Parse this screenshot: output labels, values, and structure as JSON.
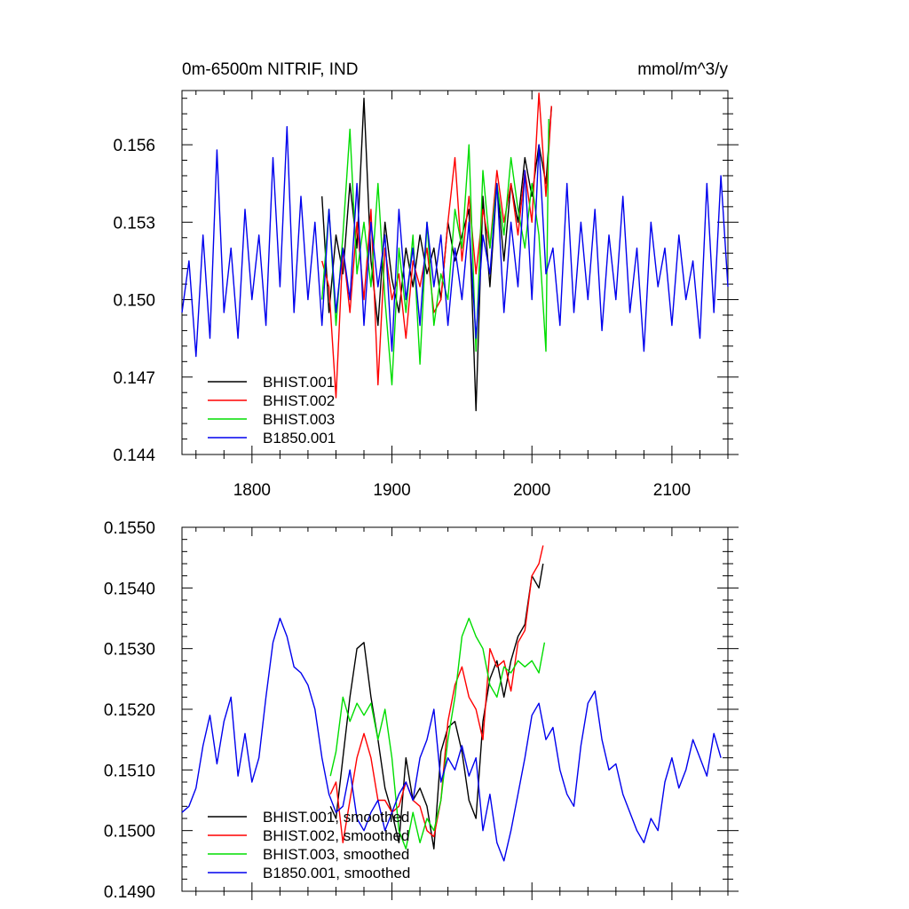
{
  "chart_data": [
    {
      "type": "line",
      "title": "0m-6500m NITRIF, IND",
      "units": "mmol/m^3/y",
      "xlim": [
        1750,
        2140
      ],
      "ylim": [
        0.144,
        0.1581
      ],
      "xticks": [
        1800,
        1900,
        2000,
        2100
      ],
      "xtick_labels": [
        "1800",
        "1900",
        "2000",
        "2100"
      ],
      "yticks": [
        0.144,
        0.147,
        0.15,
        0.153,
        0.156
      ],
      "ytick_labels": [
        "0.144",
        "0.147",
        "0.150",
        "0.153",
        "0.156"
      ],
      "legend_position": "lower-left",
      "series": [
        {
          "name": "BHIST.001",
          "color": "#000000",
          "x": [
            1850,
            1855,
            1860,
            1865,
            1870,
            1875,
            1880,
            1885,
            1890,
            1895,
            1900,
            1905,
            1910,
            1915,
            1920,
            1925,
            1930,
            1935,
            1940,
            1945,
            1950,
            1955,
            1960,
            1965,
            1970,
            1975,
            1980,
            1985,
            1990,
            1995,
            2000,
            2005,
            2010,
            2014
          ],
          "values": [
            0.154,
            0.1495,
            0.1525,
            0.151,
            0.1545,
            0.152,
            0.1578,
            0.1515,
            0.149,
            0.153,
            0.1508,
            0.1495,
            0.152,
            0.1505,
            0.1525,
            0.151,
            0.152,
            0.15,
            0.153,
            0.1515,
            0.1525,
            0.1535,
            0.1457,
            0.154,
            0.1505,
            0.1545,
            0.1515,
            0.1545,
            0.153,
            0.1555,
            0.154,
            0.156,
            0.1545,
            0.1575
          ]
        },
        {
          "name": "BHIST.002",
          "color": "#ff0000",
          "x": [
            1850,
            1855,
            1860,
            1865,
            1870,
            1875,
            1880,
            1885,
            1890,
            1895,
            1900,
            1905,
            1910,
            1915,
            1920,
            1925,
            1930,
            1935,
            1940,
            1945,
            1950,
            1955,
            1960,
            1965,
            1970,
            1975,
            1980,
            1985,
            1990,
            1995,
            2000,
            2005,
            2010,
            2014
          ],
          "values": [
            0.1515,
            0.1505,
            0.1462,
            0.152,
            0.1495,
            0.153,
            0.15,
            0.1535,
            0.1467,
            0.152,
            0.15,
            0.151,
            0.1485,
            0.1515,
            0.1505,
            0.152,
            0.1495,
            0.15,
            0.153,
            0.1555,
            0.1515,
            0.154,
            0.151,
            0.1535,
            0.152,
            0.155,
            0.153,
            0.1545,
            0.1525,
            0.155,
            0.153,
            0.158,
            0.154,
            0.1575
          ]
        },
        {
          "name": "BHIST.003",
          "color": "#00dd00",
          "x": [
            1850,
            1855,
            1860,
            1865,
            1870,
            1875,
            1880,
            1885,
            1890,
            1895,
            1900,
            1905,
            1910,
            1915,
            1920,
            1925,
            1930,
            1935,
            1940,
            1945,
            1950,
            1955,
            1960,
            1965,
            1970,
            1975,
            1980,
            1985,
            1990,
            1995,
            2000,
            2005,
            2010,
            2012
          ],
          "values": [
            0.15,
            0.1535,
            0.149,
            0.1525,
            0.1566,
            0.151,
            0.153,
            0.1505,
            0.1545,
            0.15,
            0.1467,
            0.152,
            0.1495,
            0.1525,
            0.1475,
            0.153,
            0.149,
            0.151,
            0.15,
            0.1535,
            0.152,
            0.156,
            0.148,
            0.155,
            0.152,
            0.1545,
            0.1525,
            0.1555,
            0.1535,
            0.152,
            0.1545,
            0.1525,
            0.148,
            0.157
          ]
        },
        {
          "name": "B1850.001",
          "color": "#0000ee",
          "x": [
            1750,
            1755,
            1760,
            1765,
            1770,
            1775,
            1780,
            1785,
            1790,
            1795,
            1800,
            1805,
            1810,
            1815,
            1820,
            1825,
            1830,
            1835,
            1840,
            1845,
            1850,
            1855,
            1860,
            1865,
            1870,
            1875,
            1880,
            1885,
            1890,
            1895,
            1900,
            1905,
            1910,
            1915,
            1920,
            1925,
            1930,
            1935,
            1940,
            1945,
            1950,
            1955,
            1960,
            1965,
            1970,
            1975,
            1980,
            1985,
            1990,
            1995,
            2000,
            2005,
            2010,
            2015,
            2020,
            2025,
            2030,
            2035,
            2040,
            2045,
            2050,
            2055,
            2060,
            2065,
            2070,
            2075,
            2080,
            2085,
            2090,
            2095,
            2100,
            2105,
            2110,
            2115,
            2120,
            2125,
            2130,
            2135,
            2140
          ],
          "values": [
            0.1495,
            0.1515,
            0.1478,
            0.1525,
            0.1485,
            0.1558,
            0.1495,
            0.152,
            0.1485,
            0.1535,
            0.15,
            0.1525,
            0.149,
            0.1555,
            0.1505,
            0.1567,
            0.1495,
            0.154,
            0.15,
            0.153,
            0.149,
            0.1535,
            0.1495,
            0.152,
            0.15,
            0.1545,
            0.149,
            0.153,
            0.1505,
            0.1525,
            0.148,
            0.1535,
            0.15,
            0.152,
            0.149,
            0.153,
            0.1505,
            0.1525,
            0.149,
            0.152,
            0.15,
            0.153,
            0.1485,
            0.1525,
            0.151,
            0.1545,
            0.1495,
            0.153,
            0.1505,
            0.155,
            0.15,
            0.156,
            0.151,
            0.152,
            0.149,
            0.1545,
            0.1495,
            0.153,
            0.15,
            0.1535,
            0.1488,
            0.1525,
            0.15,
            0.154,
            0.1495,
            0.152,
            0.148,
            0.153,
            0.1505,
            0.152,
            0.149,
            0.1525,
            0.15,
            0.1515,
            0.1485,
            0.1545,
            0.1495,
            0.1548,
            0.1505
          ]
        }
      ]
    },
    {
      "type": "line",
      "xlim": [
        1750,
        2140
      ],
      "ylim": [
        0.149,
        0.155
      ],
      "xticks": [
        1800,
        1900,
        2000,
        2100
      ],
      "yticks": [
        0.149,
        0.15,
        0.151,
        0.152,
        0.153,
        0.154,
        0.155
      ],
      "ytick_labels": [
        "0.1490",
        "0.1500",
        "0.1510",
        "0.1520",
        "0.1530",
        "0.1540",
        "0.1550"
      ],
      "legend_position": "lower-left",
      "series": [
        {
          "name": "BHIST.001, smoothed",
          "color": "#000000",
          "x": [
            1856,
            1860,
            1865,
            1870,
            1875,
            1880,
            1885,
            1890,
            1895,
            1900,
            1905,
            1910,
            1915,
            1920,
            1925,
            1930,
            1935,
            1940,
            1945,
            1950,
            1955,
            1960,
            1965,
            1970,
            1975,
            1980,
            1985,
            1990,
            1995,
            2000,
            2005,
            2008
          ],
          "values": [
            0.1504,
            0.1502,
            0.1512,
            0.1522,
            0.153,
            0.1531,
            0.1522,
            0.1515,
            0.1507,
            0.1503,
            0.1498,
            0.1512,
            0.1505,
            0.1507,
            0.1504,
            0.1497,
            0.1513,
            0.1517,
            0.1518,
            0.1513,
            0.1505,
            0.1502,
            0.1518,
            0.1525,
            0.1528,
            0.1522,
            0.1528,
            0.1532,
            0.1534,
            0.1542,
            0.154,
            0.1544
          ]
        },
        {
          "name": "BHIST.002, smoothed",
          "color": "#ff0000",
          "x": [
            1856,
            1860,
            1865,
            1870,
            1875,
            1880,
            1885,
            1890,
            1895,
            1900,
            1905,
            1910,
            1915,
            1920,
            1925,
            1930,
            1935,
            1940,
            1945,
            1950,
            1955,
            1960,
            1965,
            1970,
            1975,
            1980,
            1985,
            1990,
            1995,
            2000,
            2005,
            2008
          ],
          "values": [
            0.1506,
            0.1508,
            0.1498,
            0.1505,
            0.1512,
            0.1516,
            0.1512,
            0.1505,
            0.1505,
            0.1503,
            0.1504,
            0.1508,
            0.1505,
            0.1504,
            0.15,
            0.1499,
            0.1505,
            0.1518,
            0.1524,
            0.1527,
            0.1522,
            0.152,
            0.1515,
            0.153,
            0.1527,
            0.1528,
            0.1523,
            0.1531,
            0.1533,
            0.1542,
            0.1544,
            0.1547
          ]
        },
        {
          "name": "BHIST.003, smoothed",
          "color": "#00dd00",
          "x": [
            1856,
            1860,
            1865,
            1870,
            1875,
            1880,
            1885,
            1890,
            1895,
            1900,
            1905,
            1910,
            1915,
            1920,
            1925,
            1930,
            1935,
            1940,
            1945,
            1950,
            1955,
            1960,
            1965,
            1970,
            1975,
            1980,
            1985,
            1990,
            1995,
            2000,
            2005,
            2009
          ],
          "values": [
            0.1509,
            0.1513,
            0.1522,
            0.1518,
            0.1521,
            0.1519,
            0.1521,
            0.1515,
            0.152,
            0.1512,
            0.15,
            0.1497,
            0.1503,
            0.1498,
            0.1502,
            0.15,
            0.1505,
            0.1515,
            0.1522,
            0.1532,
            0.1535,
            0.1532,
            0.153,
            0.1524,
            0.1522,
            0.1527,
            0.1526,
            0.1528,
            0.1527,
            0.1528,
            0.1526,
            0.1531
          ]
        },
        {
          "name": "B1850.001, smoothed",
          "color": "#0000ee",
          "x": [
            1750,
            1755,
            1760,
            1765,
            1770,
            1775,
            1780,
            1785,
            1790,
            1795,
            1800,
            1805,
            1810,
            1815,
            1820,
            1825,
            1830,
            1835,
            1840,
            1845,
            1850,
            1855,
            1860,
            1865,
            1870,
            1875,
            1880,
            1885,
            1890,
            1895,
            1900,
            1905,
            1910,
            1915,
            1920,
            1925,
            1930,
            1935,
            1940,
            1945,
            1950,
            1955,
            1960,
            1965,
            1970,
            1975,
            1980,
            1985,
            1990,
            1995,
            2000,
            2005,
            2010,
            2015,
            2020,
            2025,
            2030,
            2035,
            2040,
            2045,
            2050,
            2055,
            2060,
            2065,
            2070,
            2075,
            2080,
            2085,
            2090,
            2095,
            2100,
            2105,
            2110,
            2115,
            2120,
            2125,
            2130,
            2135
          ],
          "values": [
            0.1503,
            0.1504,
            0.1507,
            0.1514,
            0.1519,
            0.1511,
            0.1518,
            0.1522,
            0.1509,
            0.1516,
            0.1508,
            0.1512,
            0.1522,
            0.1531,
            0.1535,
            0.1532,
            0.1527,
            0.1526,
            0.1524,
            0.152,
            0.1512,
            0.1506,
            0.1503,
            0.1504,
            0.151,
            0.1502,
            0.15,
            0.1503,
            0.1505,
            0.15,
            0.1503,
            0.1506,
            0.1508,
            0.1505,
            0.1512,
            0.1515,
            0.152,
            0.1508,
            0.1512,
            0.151,
            0.1514,
            0.1509,
            0.1512,
            0.15,
            0.1506,
            0.1498,
            0.1495,
            0.15,
            0.1506,
            0.1512,
            0.1519,
            0.1521,
            0.1515,
            0.1517,
            0.151,
            0.1506,
            0.1504,
            0.1514,
            0.1521,
            0.1523,
            0.1515,
            0.151,
            0.1511,
            0.1506,
            0.1503,
            0.15,
            0.1498,
            0.1502,
            0.15,
            0.1508,
            0.1512,
            0.1507,
            0.151,
            0.1515,
            0.1512,
            0.1509,
            0.1516,
            0.1512
          ]
        }
      ]
    }
  ]
}
